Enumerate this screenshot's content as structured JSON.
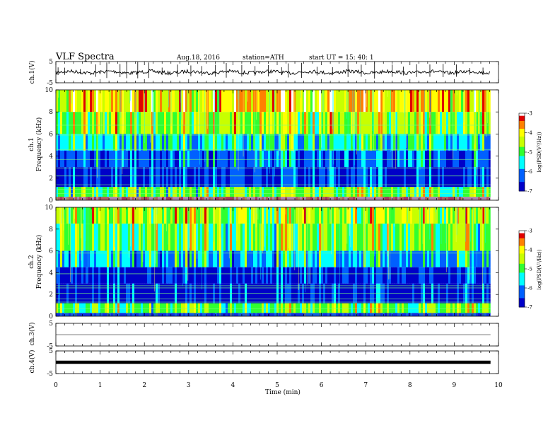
{
  "header": {
    "title": "VLF  Spectra",
    "date": "Aug.18, 2016",
    "station": "station=ATH",
    "start_ut": "start  UT  =    15: 40: 1"
  },
  "chart_data": [
    {
      "type": "line",
      "name": "ch1-waveform",
      "ylabel": "ch.1(V)",
      "ylim": [
        -5,
        5
      ],
      "yticks": [
        "5",
        "-5"
      ],
      "baseline_v": 0,
      "x_end_min": 9.82,
      "spike_times_min": [
        0.05,
        0.2,
        0.55,
        0.9,
        1.15,
        1.45,
        1.6,
        1.85,
        2.1,
        2.4,
        2.75,
        3.05,
        3.3,
        3.6,
        3.85,
        4.2,
        4.5,
        4.8,
        5.1,
        5.25,
        5.55,
        5.9,
        6.25,
        6.6,
        6.9,
        7.2,
        7.6,
        7.85,
        8.15,
        8.45,
        8.75,
        9.05,
        9.35,
        9.65
      ]
    },
    {
      "type": "heatmap",
      "name": "ch1-spectrogram",
      "channel": "ch.1",
      "ylabel": "Frequency (kHz)",
      "ylim": [
        0,
        10
      ],
      "yticks": [
        "0",
        "2",
        "4",
        "6",
        "8",
        "10"
      ],
      "x_end_min": 9.82,
      "colorbar": {
        "label": "log(PSD(V²/Hz))",
        "range": [
          -7,
          -3
        ],
        "ticks": [
          "-3",
          "-4",
          "-5",
          "-6",
          "-7"
        ]
      }
    },
    {
      "type": "heatmap",
      "name": "ch2-spectrogram",
      "channel": "ch.2",
      "ylabel": "Frequency (kHz)",
      "ylim": [
        0,
        10
      ],
      "yticks": [
        "0",
        "2",
        "4",
        "6",
        "8",
        "10"
      ],
      "x_end_min": 9.82,
      "colorbar": {
        "label": "log(PSD(V²/Hz))",
        "range": [
          -7,
          -3
        ],
        "ticks": [
          "-3",
          "-4",
          "-5",
          "-6",
          "-7"
        ]
      }
    },
    {
      "type": "line",
      "name": "ch3-waveform",
      "ylabel": "ch.3(V)",
      "ylim": [
        -5,
        5
      ],
      "yticks": [
        "5",
        "-5"
      ],
      "baseline_v": 0,
      "x_end_min": 9.82
    },
    {
      "type": "line",
      "name": "ch4-waveform",
      "ylabel": "ch.4(V)",
      "ylim": [
        -5,
        5
      ],
      "yticks": [
        "5",
        "-5"
      ],
      "baseline_v": 0,
      "x_end_min": 9.82
    }
  ],
  "x_axis": {
    "label": "Time  (min)",
    "xlim": [
      0,
      10
    ],
    "ticks": [
      "0",
      "1",
      "2",
      "3",
      "4",
      "5",
      "6",
      "7",
      "8",
      "9",
      "10"
    ]
  },
  "colors": {
    "jet": [
      "#000080",
      "#0000ff",
      "#00ffff",
      "#00ff00",
      "#ffff00",
      "#ff8000",
      "#ff0000",
      "#ffffff"
    ]
  }
}
